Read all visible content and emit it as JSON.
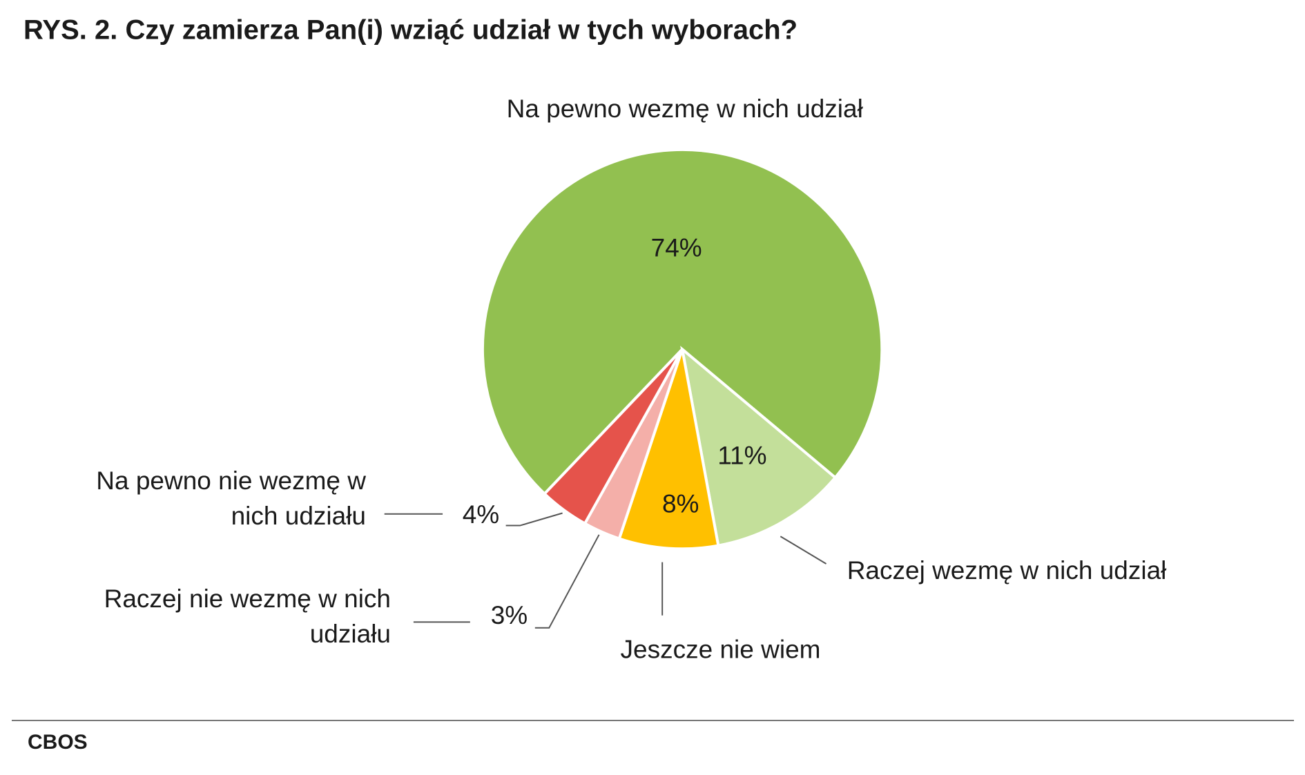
{
  "chart_data": {
    "type": "pie",
    "title": "RYS. 2. Czy zamierza Pan(i) wziąć udział w tych wyborach?",
    "categories": [
      "Na pewno wezmę w nich udział",
      "Raczej wezmę w nich udział",
      "Jeszcze nie wiem",
      "Raczej nie wezmę w nich udziału",
      "Na pewno nie wezmę w nich udziału"
    ],
    "values": [
      74,
      11,
      8,
      3,
      4
    ],
    "value_labels": [
      "74%",
      "11%",
      "8%",
      "3%",
      "4%"
    ],
    "colors": [
      "#92c050",
      "#c3df9a",
      "#ffc000",
      "#f4afa9",
      "#e5534b"
    ],
    "source": "CBOS"
  }
}
